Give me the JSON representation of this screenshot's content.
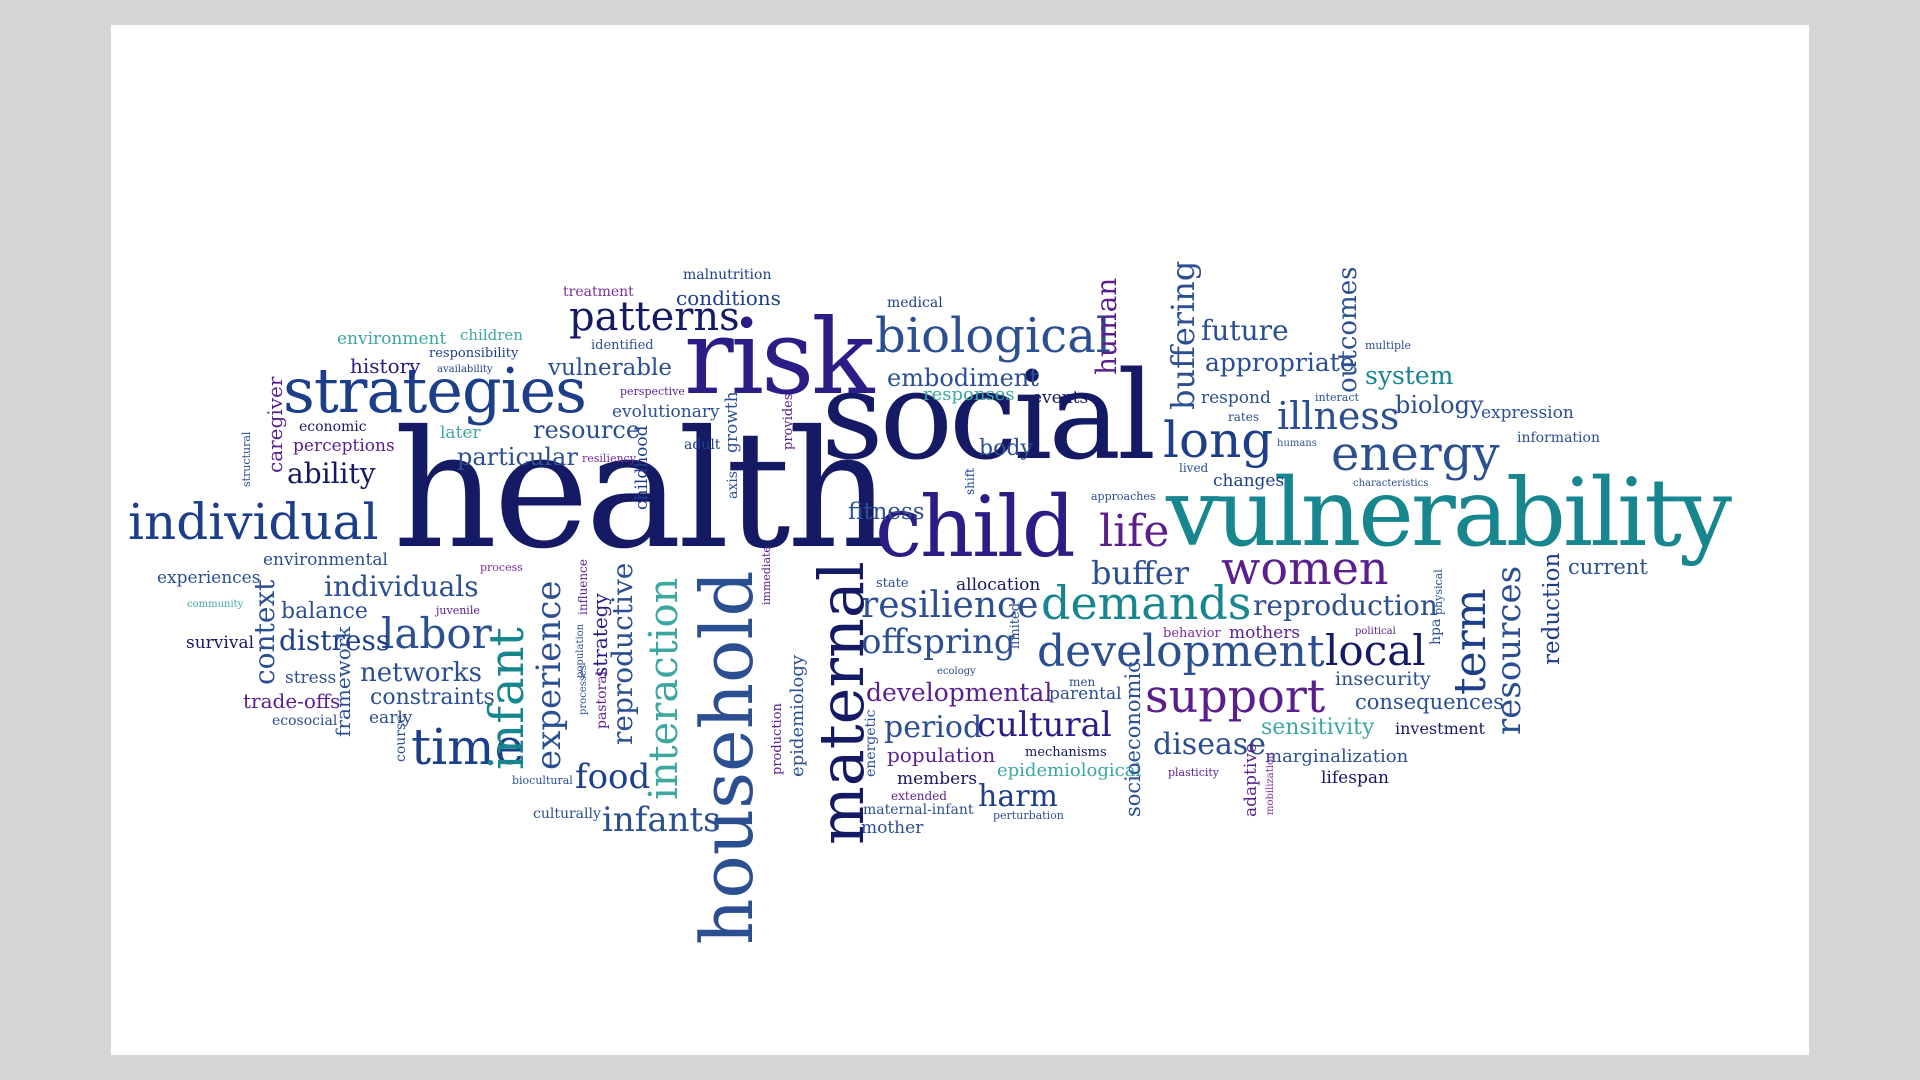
{
  "palette": {
    "navy": "#141a63",
    "indigo": "#2a1d85",
    "purple": "#5b1f8d",
    "blue": "#1d3f8a",
    "steel": "#2b4f90",
    "teal": "#17868f",
    "aqua": "#3ea7a2",
    "violet": "#7b2e9a"
  },
  "words": {
    "health": "health",
    "social": "social",
    "vulnerability": "vulnerability",
    "risk": "risk",
    "child": "child",
    "strategies": "strategies",
    "household": "household",
    "maternal": "maternal",
    "individual": "individual",
    "biological": "biological",
    "demands": "demands",
    "development": "development",
    "support": "support",
    "energy": "energy",
    "long": "long",
    "women": "women",
    "time": "time",
    "infant": "infant",
    "interaction": "interaction",
    "labor": "labor",
    "resilience": "resilience",
    "local": "local",
    "term": "term",
    "resources": "resources",
    "patterns": "patterns",
    "life": "life",
    "buffering": "buffering",
    "illness": "illness",
    "offspring": "offspring",
    "cultural": "cultural",
    "experience": "experience",
    "context": "context",
    "disease": "disease",
    "buffer": "buffer",
    "reproduction": "reproduction",
    "infants": "infants",
    "food": "food",
    "harm": "harm",
    "period": "period",
    "reproductive": "reproductive",
    "individuals": "individuals",
    "outcomes": "outcomes",
    "human": "human",
    "future": "future",
    "appropriate": "appropriate",
    "system": "system",
    "biology": "biology",
    "embodiment": "embodiment",
    "vulnerable": "vulnerable",
    "resource": "resource",
    "particular": "particular",
    "ability": "ability",
    "distress": "distress",
    "networks": "networks",
    "constraints": "constraints",
    "fitness": "fitness",
    "developmental": "developmental",
    "sensitivity": "sensitivity",
    "consequences": "consequences",
    "insecurity": "insecurity",
    "current": "current",
    "reduction": "reduction",
    "socioeconomic": "socioeconomic",
    "epidemiology": "epidemiology",
    "strategy": "strategy",
    "childhood": "childhood",
    "caregiver": "caregiver",
    "framework": "framework",
    "body": "body",
    "conditions": "conditions",
    "malnutrition": "malnutrition",
    "treatment": "treatment",
    "medical": "medical",
    "environment": "environment",
    "children": "children",
    "history": "history",
    "responsibility": "responsibility",
    "availability": "availability",
    "identified": "identified",
    "perspective": "perspective",
    "evolutionary": "evolutionary",
    "later": "later",
    "economic": "economic",
    "perceptions": "perceptions",
    "structural": "structural",
    "resiliency": "resiliency",
    "adult": "adult",
    "growth": "growth",
    "provides": "provides",
    "responses": "responses",
    "events": "events",
    "respond": "respond",
    "rates": "rates",
    "interact": "interact",
    "humans": "humans",
    "lived": "lived",
    "changes": "changes",
    "approaches": "approaches",
    "characteristics": "characteristics",
    "multiple": "multiple",
    "expression": "expression",
    "information": "information",
    "environmental": "environmental",
    "experiences": "experiences",
    "process": "process",
    "community": "community",
    "juvenile": "juvenile",
    "balance": "balance",
    "survival": "survival",
    "stress": "stress",
    "trade_offs": "trade-offs",
    "ecosocial": "ecosocial",
    "early": "early",
    "course": "course",
    "biocultural": "biocultural",
    "culturally": "culturally",
    "pastoral": "pastoral",
    "processes": "processes",
    "population": "population",
    "influence": "influence",
    "axis": "axis",
    "shift": "shift",
    "immediate": "immediate",
    "production": "production",
    "state": "state",
    "allocation": "allocation",
    "ecology": "ecology",
    "limited": "limited",
    "men": "men",
    "parental": "parental",
    "energetic": "energetic",
    "population_w": "population",
    "members": "members",
    "extended": "extended",
    "maternal_infant": "maternal-infant",
    "mother": "mother",
    "mechanisms": "mechanisms",
    "epidemiological": "epidemiological",
    "perturbation": "perturbation",
    "plasticity": "plasticity",
    "adaptive": "adaptive",
    "mobilization": "mobilization",
    "marginalization": "marginalization",
    "lifespan": "lifespan",
    "investment": "investment",
    "behavior": "behavior",
    "mothers": "mothers",
    "political": "political",
    "hpa": "hpa",
    "physical": "physical"
  }
}
